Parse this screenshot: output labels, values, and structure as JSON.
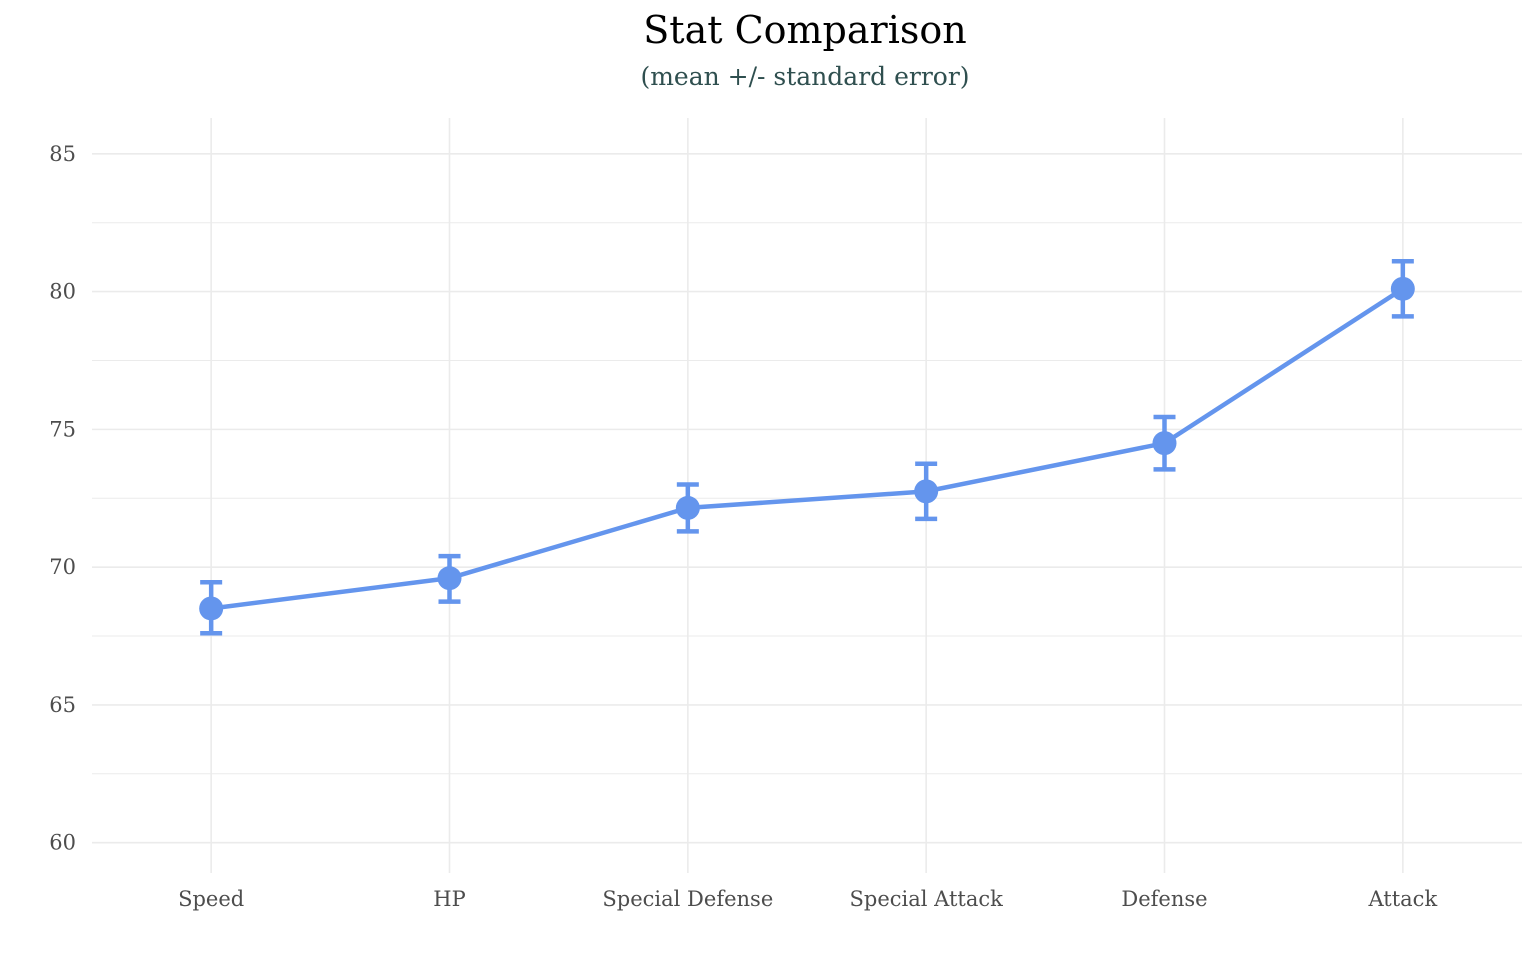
{
  "chart_data": {
    "type": "line",
    "title": "Stat Comparison",
    "subtitle": "(mean +/- standard error)",
    "xlabel": "",
    "ylabel": "",
    "categories": [
      "Speed",
      "HP",
      "Special Defense",
      "Special Attack",
      "Defense",
      "Attack"
    ],
    "series": [
      {
        "values": [
          68.5,
          69.6,
          72.15,
          72.75,
          74.5,
          80.1
        ],
        "error_low": [
          67.6,
          68.75,
          71.3,
          71.75,
          73.55,
          79.1
        ],
        "error_high": [
          69.45,
          70.4,
          73.0,
          73.75,
          75.45,
          81.1
        ]
      }
    ],
    "ylim": [
      58.9,
      86.3
    ],
    "yticks": [
      60,
      65,
      70,
      75,
      80,
      85
    ],
    "grid": true,
    "legend": "none",
    "color": "#6495ed"
  }
}
